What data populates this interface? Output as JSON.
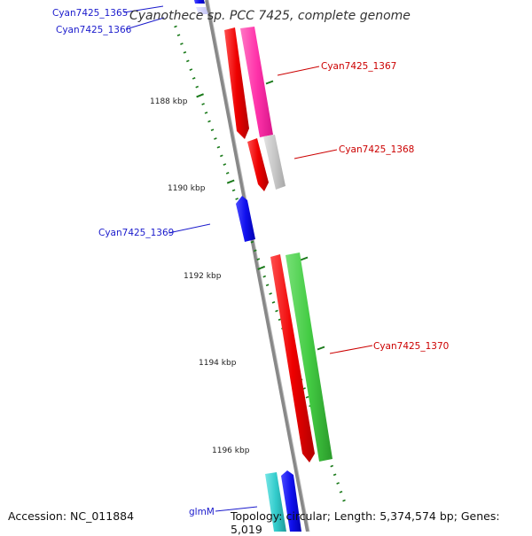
{
  "title": "Cyanothece sp. PCC 7425, complete genome",
  "footer": {
    "accession": "Accession: NC_011884",
    "topology": "Topology: circular; Length: 5,374,574 bp; Genes: 5,019"
  },
  "scale_labels": [
    "1188 kbp",
    "1190 kbp",
    "1192 kbp",
    "1194 kbp",
    "1196 kbp"
  ],
  "gene_labels": {
    "g1365": "Cyan7425_1365",
    "g1366": "Cyan7425_1366",
    "g1367": "Cyan7425_1367",
    "g1368": "Cyan7425_1368",
    "g1369": "Cyan7425_1369",
    "g1370": "Cyan7425_1370",
    "glmM": "glmM"
  },
  "colors": {
    "backbone": "#888888",
    "red": "#ee0000",
    "magenta": "#ff33aa",
    "grey": "#c8c8c8",
    "blue": "#1010ee",
    "green": "#44cc44",
    "cyan": "#33cccc",
    "tick": "#1a7a1a",
    "label_blue": "#1a1acc",
    "label_red": "#cc0000"
  }
}
